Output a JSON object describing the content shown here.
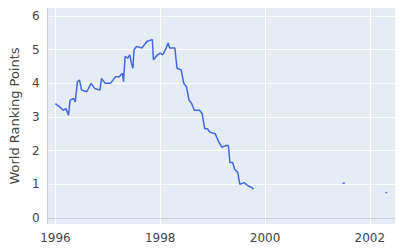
{
  "chart_data": {
    "type": "line",
    "y_label": "World Ranking Points",
    "x": [
      1996.0,
      1996.08,
      1996.15,
      1996.2,
      1996.25,
      1996.28,
      1996.35,
      1996.38,
      1996.42,
      1996.46,
      1996.5,
      1996.6,
      1996.68,
      1996.75,
      1996.85,
      1996.88,
      1996.95,
      1997.05,
      1997.15,
      1997.22,
      1997.28,
      1997.3,
      1997.33,
      1997.38,
      1997.42,
      1997.45,
      1997.48,
      1997.5,
      1997.55,
      1997.65,
      1997.75,
      1997.85,
      1997.87,
      1997.95,
      1998.0,
      1998.05,
      1998.1,
      1998.15,
      1998.18,
      1998.28,
      1998.32,
      1998.4,
      1998.45,
      1998.5,
      1998.55,
      1998.6,
      1998.65,
      1998.75,
      1998.8,
      1998.85,
      1998.9,
      1998.95,
      1999.05,
      1999.12,
      1999.18,
      1999.25,
      1999.3,
      1999.33,
      1999.38,
      1999.42,
      1999.48,
      1999.52,
      1999.6,
      1999.68,
      1999.75,
      1999.78,
      2000.5,
      2001.48,
      2001.52,
      2001.9,
      2002.3,
      2002.33
    ],
    "values": [
      3.4,
      3.3,
      3.2,
      3.25,
      3.05,
      3.5,
      3.55,
      3.45,
      4.05,
      4.1,
      3.8,
      3.75,
      4.0,
      3.85,
      3.8,
      4.15,
      4.0,
      4.0,
      4.2,
      4.2,
      4.3,
      4.05,
      4.8,
      4.75,
      4.85,
      4.6,
      4.45,
      5.0,
      5.1,
      5.05,
      5.25,
      5.3,
      4.7,
      4.85,
      4.9,
      4.85,
      5.0,
      5.2,
      5.05,
      5.05,
      4.45,
      4.4,
      4.0,
      3.9,
      3.5,
      3.4,
      3.2,
      3.2,
      3.1,
      2.65,
      2.65,
      2.55,
      2.5,
      2.25,
      2.1,
      2.15,
      2.15,
      1.65,
      1.65,
      1.45,
      1.35,
      1.0,
      1.05,
      0.95,
      0.9,
      0.85,
      null,
      1.03,
      1.03,
      null,
      0.76,
      0.75
    ],
    "color": "#4169e1",
    "xlim": [
      1995.85,
      2002.48
    ],
    "xticks": [
      1996,
      1998,
      2000,
      2002
    ],
    "ylim": [
      -0.18,
      6.24
    ],
    "yticks": [
      0,
      1,
      2,
      3,
      4,
      5,
      6
    ],
    "grid": true
  }
}
